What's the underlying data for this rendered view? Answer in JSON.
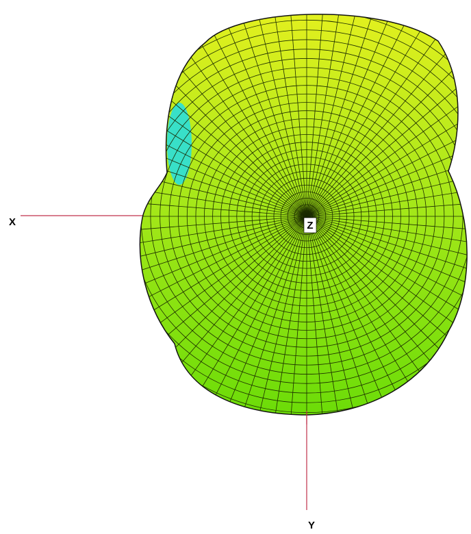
{
  "axes": {
    "x_label": "X",
    "y_label": "Y",
    "z_label": "Z"
  }
}
